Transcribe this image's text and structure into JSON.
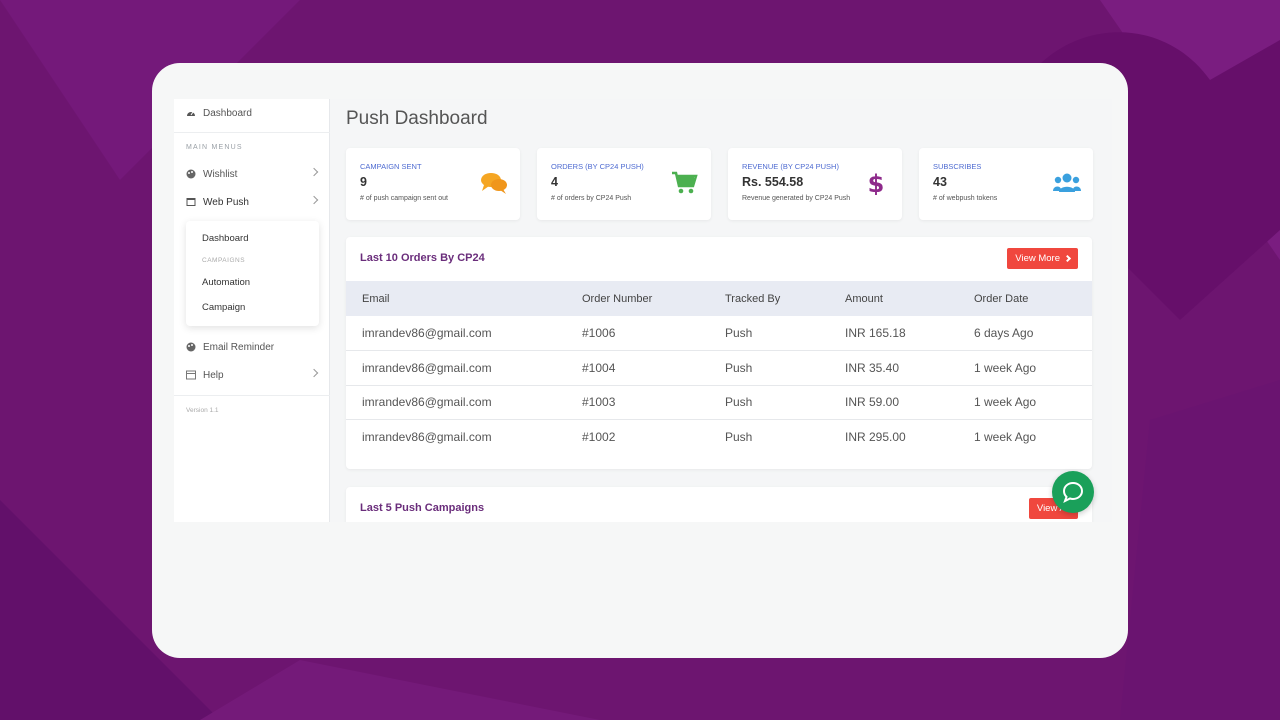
{
  "sidebar": {
    "top_item": "Dashboard",
    "section_heading": "MAIN MENUS",
    "items": [
      {
        "label": "Wishlist"
      },
      {
        "label": "Web Push"
      },
      {
        "label": "Email Reminder"
      },
      {
        "label": "Help"
      }
    ],
    "submenu": {
      "dashboard": "Dashboard",
      "heading": "CAMPAIGNS",
      "automation": "Automation",
      "campaign": "Campaign"
    },
    "version": "Version 1.1"
  },
  "main": {
    "title": "Push Dashboard",
    "stats": [
      {
        "label": "CAMPAIGN SENT",
        "value": "9",
        "desc": "# of push campaign sent out",
        "icon": "chat-bubbles-icon",
        "color": "#f5a623"
      },
      {
        "label": "ORDERS (BY CP24 PUSH)",
        "value": "4",
        "desc": "# of orders by CP24 Push",
        "icon": "cart-icon",
        "color": "#4cb050"
      },
      {
        "label": "REVENUE (BY CP24 PUSH)",
        "value": "Rs. 554.58",
        "desc": "Revenue generated by CP24 Push",
        "icon": "dollar-icon",
        "color": "#8e2a8b"
      },
      {
        "label": "SUBSCRIBES",
        "value": "43",
        "desc": "# of webpush tokens",
        "icon": "users-icon",
        "color": "#3aa0de"
      }
    ],
    "orders_panel": {
      "title": "Last 10 Orders By CP24",
      "button": "View More",
      "columns": [
        "Email",
        "Order Number",
        "Tracked By",
        "Amount",
        "Order Date"
      ],
      "rows": [
        [
          "imrandev86@gmail.com",
          "#1006",
          "Push",
          "INR 165.18",
          "6 days Ago"
        ],
        [
          "imrandev86@gmail.com",
          "#1004",
          "Push",
          "INR 35.40",
          "1 week Ago"
        ],
        [
          "imrandev86@gmail.com",
          "#1003",
          "Push",
          "INR 59.00",
          "1 week Ago"
        ],
        [
          "imrandev86@gmail.com",
          "#1002",
          "Push",
          "INR 295.00",
          "1 week Ago"
        ]
      ]
    },
    "campaigns_panel": {
      "title": "Last 5 Push Campaigns",
      "button": "View All"
    }
  },
  "colors": {
    "background": "#6d1570",
    "accent_red": "#f0473e",
    "chat_green": "#1aa05a"
  }
}
